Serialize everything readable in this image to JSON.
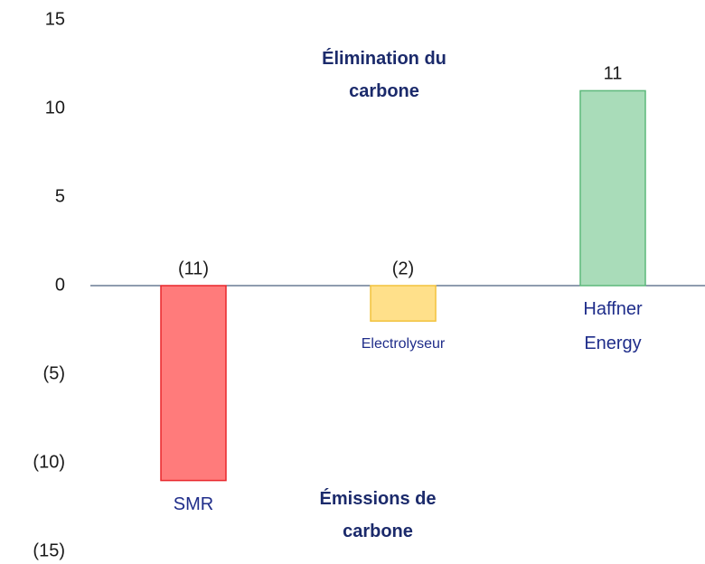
{
  "chart_data": {
    "type": "bar",
    "categories": [
      "SMR",
      "Electrolyseur",
      "Haffner Energy"
    ],
    "values": [
      -11,
      -2,
      11
    ],
    "value_labels": [
      "(11)",
      "(2)",
      "11"
    ],
    "colors": [
      "#ff7b7b",
      "#ffe08a",
      "#a9dcb9"
    ],
    "border_colors": [
      "#e8262b",
      "#f2c23c",
      "#5cb87a"
    ],
    "ylim": [
      -15,
      15
    ],
    "yticks": [
      15,
      10,
      5,
      0,
      {
        "value": -5,
        "label": "(5)"
      },
      {
        "value": -10,
        "label": "(10)"
      },
      {
        "value": -15,
        "label": "(15)"
      }
    ],
    "annotations": [
      "Élimination du carbone",
      "Émissions de carbone"
    ],
    "grid": false
  }
}
